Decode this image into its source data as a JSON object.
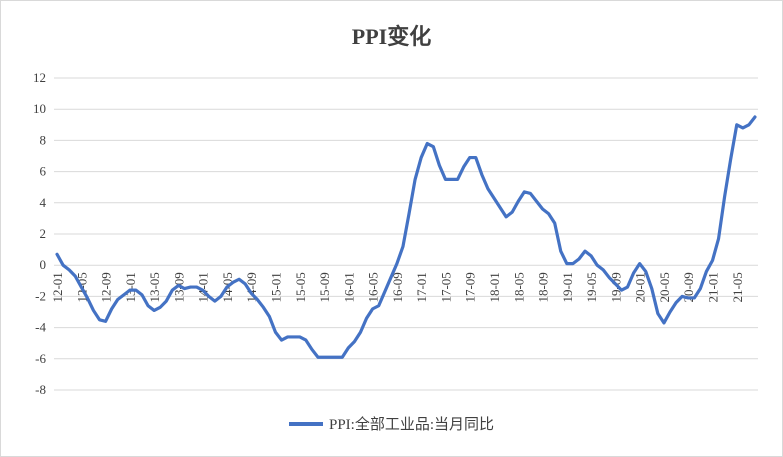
{
  "chart_data": {
    "type": "line",
    "title": "PPI变化",
    "xlabel": "",
    "ylabel": "",
    "ylim": [
      -8,
      12
    ],
    "yticks": [
      -8,
      -6,
      -4,
      -2,
      0,
      2,
      4,
      6,
      8,
      10,
      12
    ],
    "grid": "horizontal",
    "legend_position": "bottom",
    "color": "#4472C4",
    "x_tick_labels": [
      "12-01",
      "12-05",
      "12-09",
      "13-01",
      "13-05",
      "13-09",
      "14-01",
      "14-05",
      "14-09",
      "15-01",
      "15-05",
      "15-09",
      "16-01",
      "16-05",
      "16-09",
      "17-01",
      "17-05",
      "17-09",
      "18-01",
      "18-05",
      "18-09",
      "19-01",
      "19-05",
      "19-09",
      "20-01",
      "20-05",
      "20-09",
      "21-01",
      "21-05"
    ],
    "x_tick_step": 4,
    "series": [
      {
        "name": "PPI:全部工业品:当月同比",
        "x": [
          "12-01",
          "12-02",
          "12-03",
          "12-04",
          "12-05",
          "12-06",
          "12-07",
          "12-08",
          "12-09",
          "12-10",
          "12-11",
          "12-12",
          "13-01",
          "13-02",
          "13-03",
          "13-04",
          "13-05",
          "13-06",
          "13-07",
          "13-08",
          "13-09",
          "13-10",
          "13-11",
          "13-12",
          "14-01",
          "14-02",
          "14-03",
          "14-04",
          "14-05",
          "14-06",
          "14-07",
          "14-08",
          "14-09",
          "14-10",
          "14-11",
          "14-12",
          "15-01",
          "15-02",
          "15-03",
          "15-04",
          "15-05",
          "15-06",
          "15-07",
          "15-08",
          "15-09",
          "15-10",
          "15-11",
          "15-12",
          "16-01",
          "16-02",
          "16-03",
          "16-04",
          "16-05",
          "16-06",
          "16-07",
          "16-08",
          "16-09",
          "16-10",
          "16-11",
          "16-12",
          "17-01",
          "17-02",
          "17-03",
          "17-04",
          "17-05",
          "17-06",
          "17-07",
          "17-08",
          "17-09",
          "17-10",
          "17-11",
          "17-12",
          "18-01",
          "18-02",
          "18-03",
          "18-04",
          "18-05",
          "18-06",
          "18-07",
          "18-08",
          "18-09",
          "18-10",
          "18-11",
          "18-12",
          "19-01",
          "19-02",
          "19-03",
          "19-04",
          "19-05",
          "19-06",
          "19-07",
          "19-08",
          "19-09",
          "19-10",
          "19-11",
          "19-12",
          "20-01",
          "20-02",
          "20-03",
          "20-04",
          "20-05",
          "20-06",
          "20-07",
          "20-08",
          "20-09",
          "20-10",
          "20-11",
          "20-12",
          "21-01",
          "21-02",
          "21-03",
          "21-04",
          "21-05",
          "21-06",
          "21-07",
          "21-08"
        ],
        "values": [
          0.7,
          0.0,
          -0.3,
          -0.7,
          -1.4,
          -2.1,
          -2.9,
          -3.5,
          -3.6,
          -2.8,
          -2.2,
          -1.9,
          -1.6,
          -1.6,
          -1.9,
          -2.6,
          -2.9,
          -2.7,
          -2.3,
          -1.6,
          -1.3,
          -1.5,
          -1.4,
          -1.4,
          -1.6,
          -2.0,
          -2.3,
          -2.0,
          -1.4,
          -1.1,
          -0.9,
          -1.2,
          -1.8,
          -2.2,
          -2.7,
          -3.3,
          -4.3,
          -4.8,
          -4.6,
          -4.6,
          -4.6,
          -4.8,
          -5.4,
          -5.9,
          -5.9,
          -5.9,
          -5.9,
          -5.9,
          -5.3,
          -4.9,
          -4.3,
          -3.4,
          -2.8,
          -2.6,
          -1.7,
          -0.8,
          0.1,
          1.2,
          3.3,
          5.5,
          6.9,
          7.8,
          7.6,
          6.4,
          5.5,
          5.5,
          5.5,
          6.3,
          6.9,
          6.9,
          5.8,
          4.9,
          4.3,
          3.7,
          3.1,
          3.4,
          4.1,
          4.7,
          4.6,
          4.1,
          3.6,
          3.3,
          2.7,
          0.9,
          0.1,
          0.1,
          0.4,
          0.9,
          0.6,
          0.0,
          -0.3,
          -0.8,
          -1.2,
          -1.6,
          -1.4,
          -0.5,
          0.1,
          -0.4,
          -1.5,
          -3.1,
          -3.7,
          -3.0,
          -2.4,
          -2.0,
          -2.1,
          -2.1,
          -1.5,
          -0.4,
          0.3,
          1.7,
          4.4,
          6.8,
          9.0,
          8.8,
          9.0,
          9.5
        ]
      }
    ]
  }
}
